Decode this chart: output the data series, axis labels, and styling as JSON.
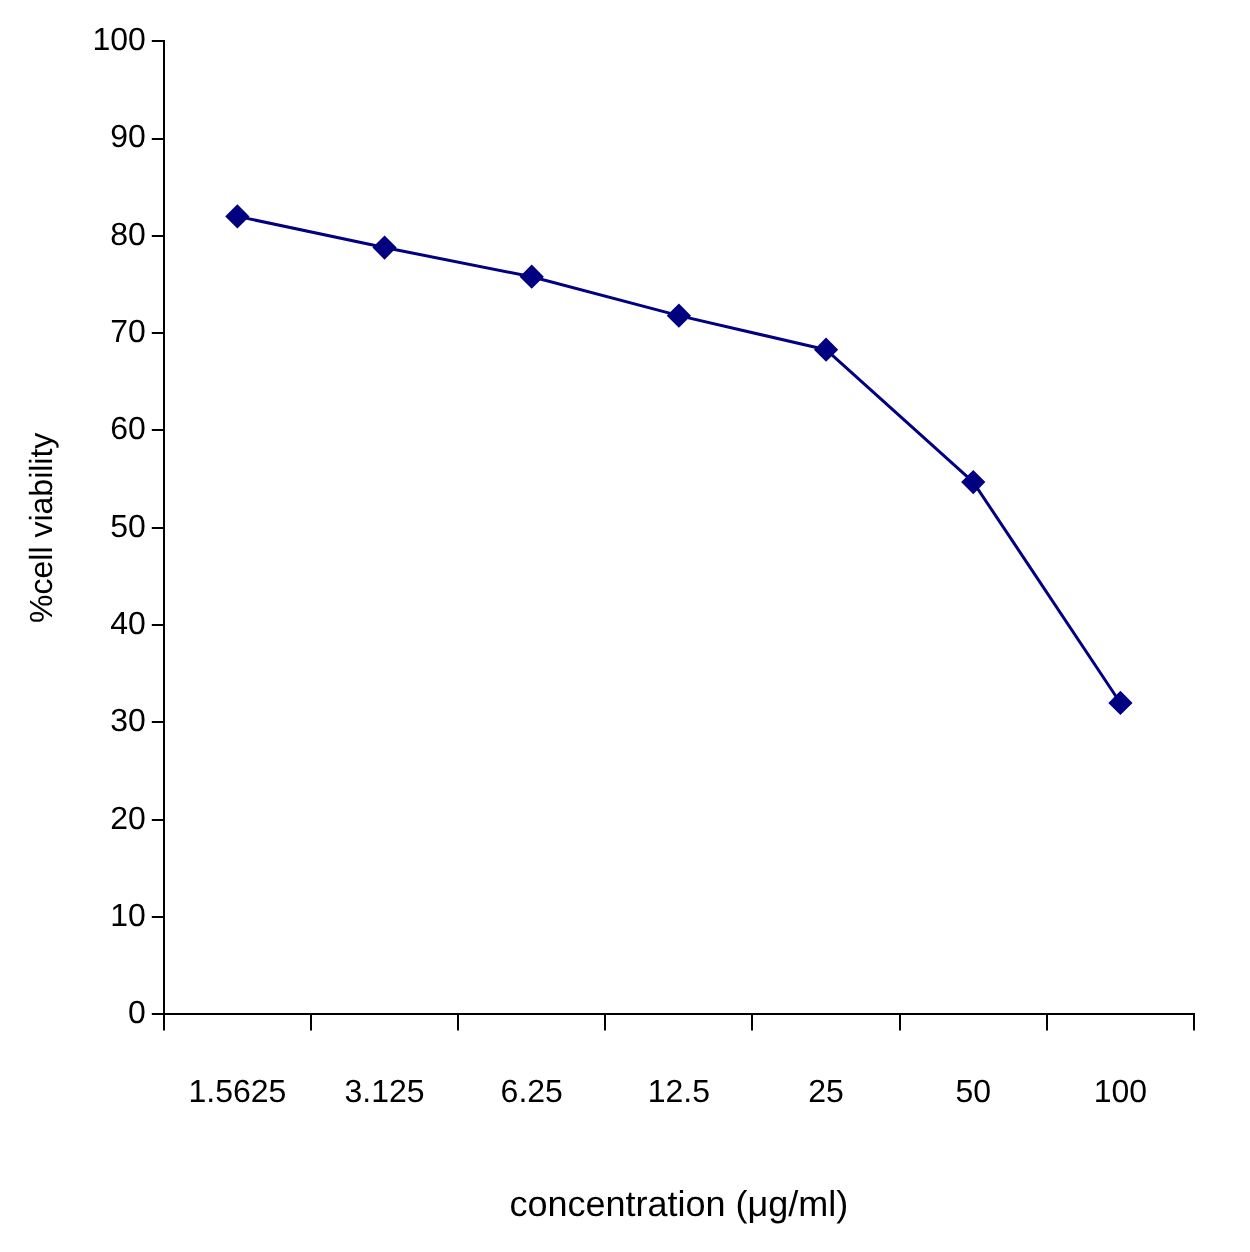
{
  "chart_data": {
    "type": "line",
    "xlabel": "concentration (μg/ml)",
    "ylabel": "%cell viability",
    "categories": [
      "1.5625",
      "3.125",
      "6.25",
      "12.5",
      "25",
      "50",
      "100"
    ],
    "series": [
      {
        "color": "#000080",
        "values": [
          82,
          78.8,
          75.8,
          71.8,
          68.3,
          54.7,
          32
        ]
      }
    ],
    "ylim": [
      0,
      100
    ],
    "yticks": [
      0,
      10,
      20,
      30,
      40,
      50,
      60,
      70,
      80,
      90,
      100
    ],
    "grid": false,
    "legend": false,
    "marker": "diamond",
    "line_style": "solid"
  }
}
